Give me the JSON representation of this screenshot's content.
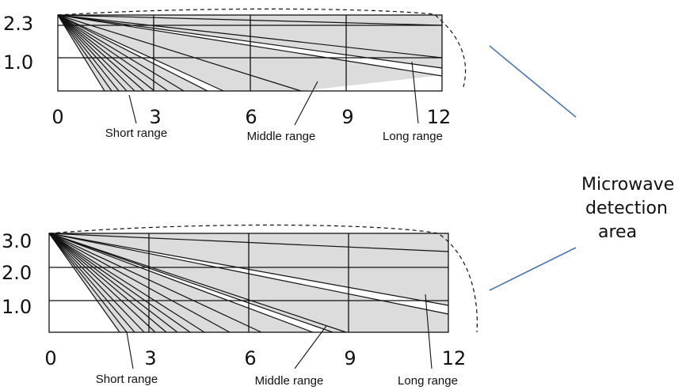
{
  "side_label": {
    "line1": "Microwave",
    "line2": "detection",
    "line3": "area"
  },
  "colors": {
    "fill": "#dcdcdc",
    "lines": "#111111",
    "connector": "#4a78b0",
    "background": "#ffffff"
  },
  "panels": [
    {
      "y_ticks": [
        "2.3",
        "1.0"
      ],
      "x_ticks": [
        "0",
        "3",
        "6",
        "9",
        "12"
      ],
      "labels": {
        "short": "Short range",
        "middle": "Middle range",
        "long": "Long range"
      }
    },
    {
      "y_ticks": [
        "3.0",
        "2.0",
        "1.0"
      ],
      "x_ticks": [
        "0",
        "3",
        "6",
        "9",
        "12"
      ],
      "labels": {
        "short": "Short range",
        "middle": "Middle range",
        "long": "Long range"
      }
    }
  ]
}
